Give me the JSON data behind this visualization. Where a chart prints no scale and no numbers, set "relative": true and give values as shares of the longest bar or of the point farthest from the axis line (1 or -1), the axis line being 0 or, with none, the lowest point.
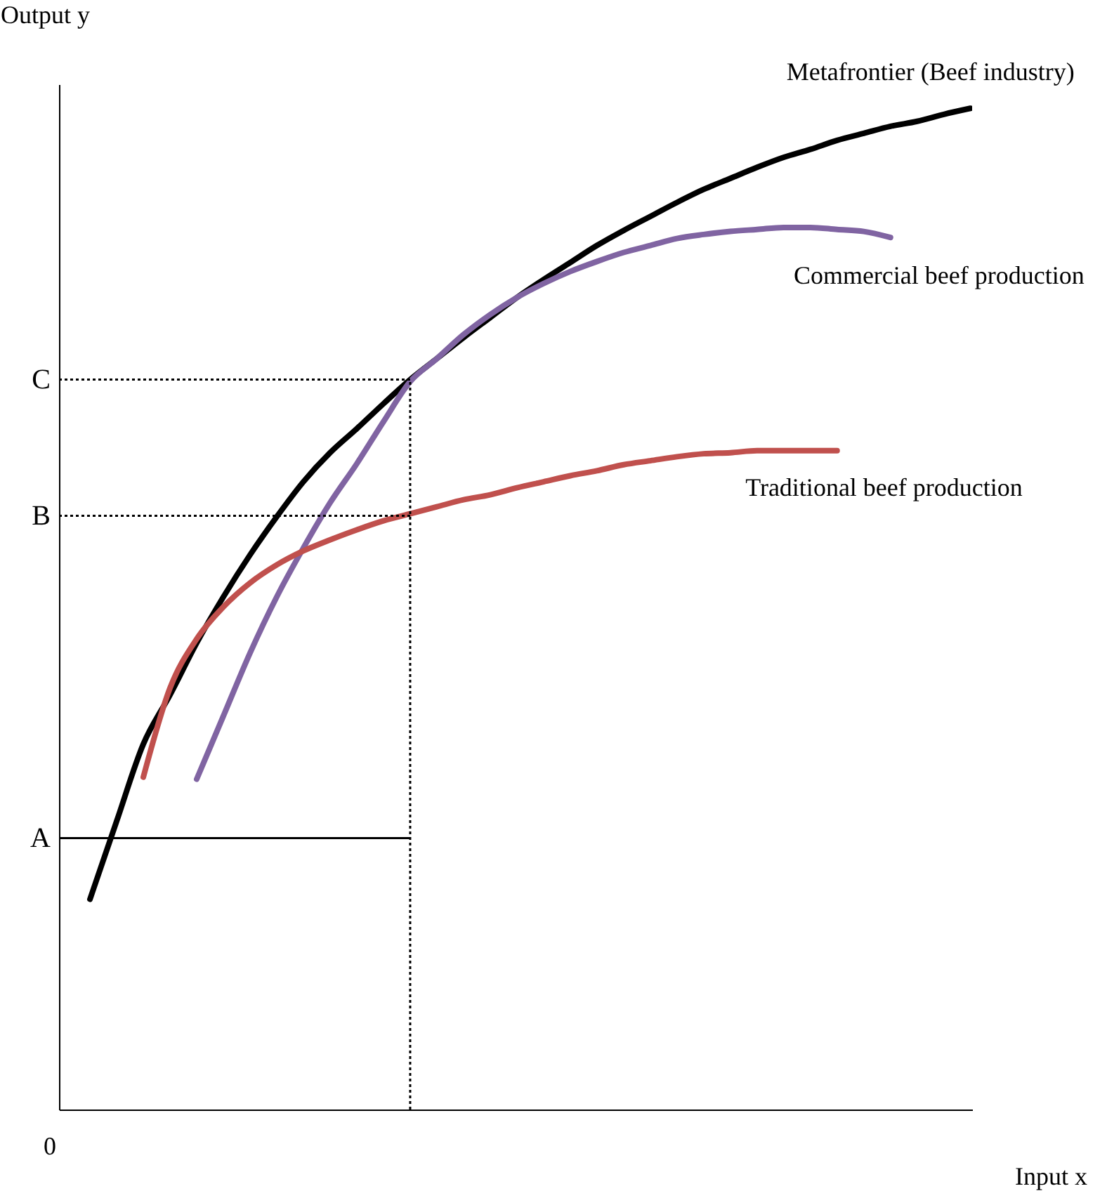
{
  "chart_data": {
    "type": "line",
    "relative": true,
    "xlabel": "Input x",
    "ylabel": "Output y",
    "categories": [
      null,
      null,
      null,
      null,
      null,
      null,
      null,
      null,
      null,
      null,
      null,
      null,
      null,
      null,
      null,
      null,
      null,
      null,
      null,
      null,
      null,
      null,
      null,
      null,
      null,
      null,
      null,
      null,
      null,
      null,
      null,
      null,
      null,
      null
    ],
    "series": [
      {
        "name": "Metafrontier (Beef industry)",
        "color": "#000000",
        "values": [
          0.21,
          0.288,
          0.365,
          0.414,
          0.466,
          0.512,
          0.554,
          0.592,
          0.627,
          0.656,
          0.68,
          0.705,
          0.729,
          0.75,
          0.771,
          0.791,
          0.811,
          0.829,
          0.846,
          0.863,
          0.878,
          0.892,
          0.906,
          0.919,
          0.93,
          0.941,
          0.951,
          0.959,
          0.968,
          0.975,
          0.982,
          0.987,
          0.994,
          1
        ]
      },
      {
        "name": "Commercial beef production",
        "color": "#8064a2",
        "values": [
          null,
          null,
          null,
          null,
          0.33,
          0.393,
          0.456,
          0.512,
          0.561,
          0.606,
          0.645,
          0.687,
          0.727,
          0.75,
          0.774,
          0.794,
          0.811,
          0.825,
          0.837,
          0.847,
          0.856,
          0.863,
          0.87,
          0.874,
          0.877,
          0.879,
          0.881,
          0.881,
          0.879,
          0.877,
          0.871,
          null,
          null,
          null
        ]
      },
      {
        "name": "Traditional beef production",
        "color": "#c0504d",
        "values": [
          null,
          null,
          0.332,
          0.421,
          0.47,
          0.502,
          0.526,
          0.544,
          0.558,
          0.569,
          0.579,
          0.588,
          0.595,
          0.602,
          0.609,
          0.614,
          0.621,
          0.627,
          0.633,
          0.638,
          0.644,
          0.648,
          0.652,
          0.655,
          0.656,
          0.658,
          0.658,
          0.658,
          0.658,
          null,
          null,
          null,
          null,
          null
        ]
      }
    ],
    "ref_lines": [
      {
        "axis": "y",
        "value": 0.729,
        "label": "C",
        "line_style": "dotted"
      },
      {
        "axis": "y",
        "value": 0.593,
        "label": "B",
        "line_style": "dotted"
      },
      {
        "axis": "y",
        "value": 0.271,
        "label": "A",
        "line_style": "solid"
      }
    ],
    "annotations": [
      "0"
    ]
  }
}
